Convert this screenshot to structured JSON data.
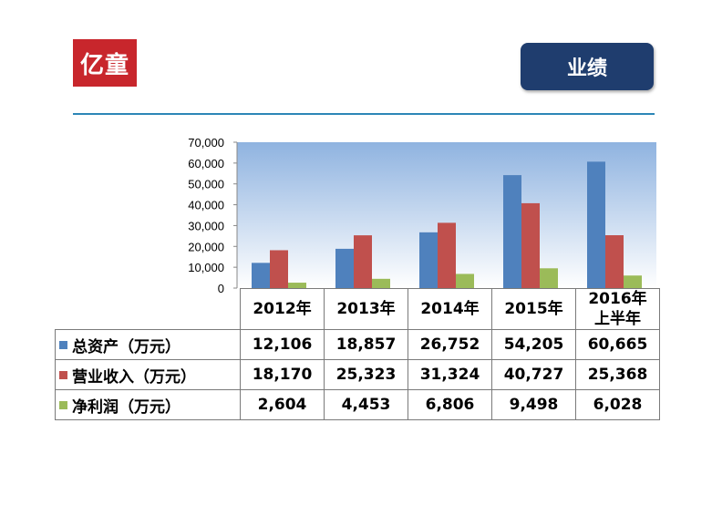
{
  "header": {
    "logo_text": "亿童",
    "page_title": "业绩",
    "logo_color": "#c8262c",
    "title_bg": "#1f3d6e",
    "rule_color": "#2c86b7"
  },
  "chart_data": {
    "type": "bar",
    "categories": [
      "2012年",
      "2013年",
      "2014年",
      "2015年",
      "2016年上半年"
    ],
    "category_lines": [
      [
        "2012年"
      ],
      [
        "2013年"
      ],
      [
        "2014年"
      ],
      [
        "2015年"
      ],
      [
        "2016年",
        "上半年"
      ]
    ],
    "series": [
      {
        "name": "总资产（万元）",
        "color": "#4f81bd",
        "values": [
          12106,
          18857,
          26752,
          54205,
          60665
        ],
        "labels": [
          "12,106",
          "18,857",
          "26,752",
          "54,205",
          "60,665"
        ]
      },
      {
        "name": "营业收入（万元）",
        "color": "#c0504d",
        "values": [
          18170,
          25323,
          31324,
          40727,
          25368
        ],
        "labels": [
          "18,170",
          "25,323",
          "31,324",
          "40,727",
          "25,368"
        ]
      },
      {
        "name": "净利润（万元）",
        "color": "#9bbb59",
        "values": [
          2604,
          4453,
          6806,
          9498,
          6028
        ],
        "labels": [
          "2,604",
          "4,453",
          "6,806",
          "9,498",
          "6,028"
        ]
      }
    ],
    "y_ticks": [
      "0",
      "10,000",
      "20,000",
      "30,000",
      "40,000",
      "50,000",
      "60,000",
      "70,000"
    ],
    "ylim": [
      0,
      70000
    ],
    "grid": false,
    "legend": "data-table"
  }
}
